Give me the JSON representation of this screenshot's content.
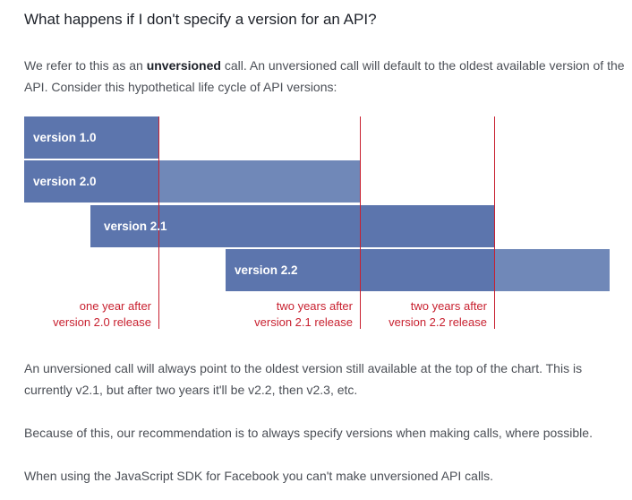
{
  "heading": "What happens if I don't specify a version for an API?",
  "intro": {
    "before": "We refer to this as an ",
    "bold": "unversioned",
    "after": " call. An unversioned call will default to the oldest available version of the API. Consider this hypothetical life cycle of API versions:"
  },
  "lifecycle": {
    "versions": [
      {
        "label": "version 1.0"
      },
      {
        "label": "version 2.0"
      },
      {
        "label": "version 2.1"
      },
      {
        "label": "version 2.2"
      }
    ],
    "markers": [
      {
        "line1": "one year after",
        "line2": "version 2.0 release"
      },
      {
        "line1": "two years after",
        "line2": "version 2.1 release"
      },
      {
        "line1": "two years after",
        "line2": "version 2.2 release"
      }
    ],
    "colors": {
      "bar": "#7088b8",
      "bar_dark": "#5c75ad",
      "marker": "#c8202f"
    }
  },
  "paragraphs": {
    "status": "An unversioned call will always point to the oldest version still available at the top of the chart. This is currently v2.1, but after two years it'll be v2.2, then v2.3, etc.",
    "recommend": "Because of this, our recommendation is to always specify versions when making calls, where possible.",
    "sdk": "When using the JavaScript SDK for Facebook you can't make unversioned API calls."
  }
}
